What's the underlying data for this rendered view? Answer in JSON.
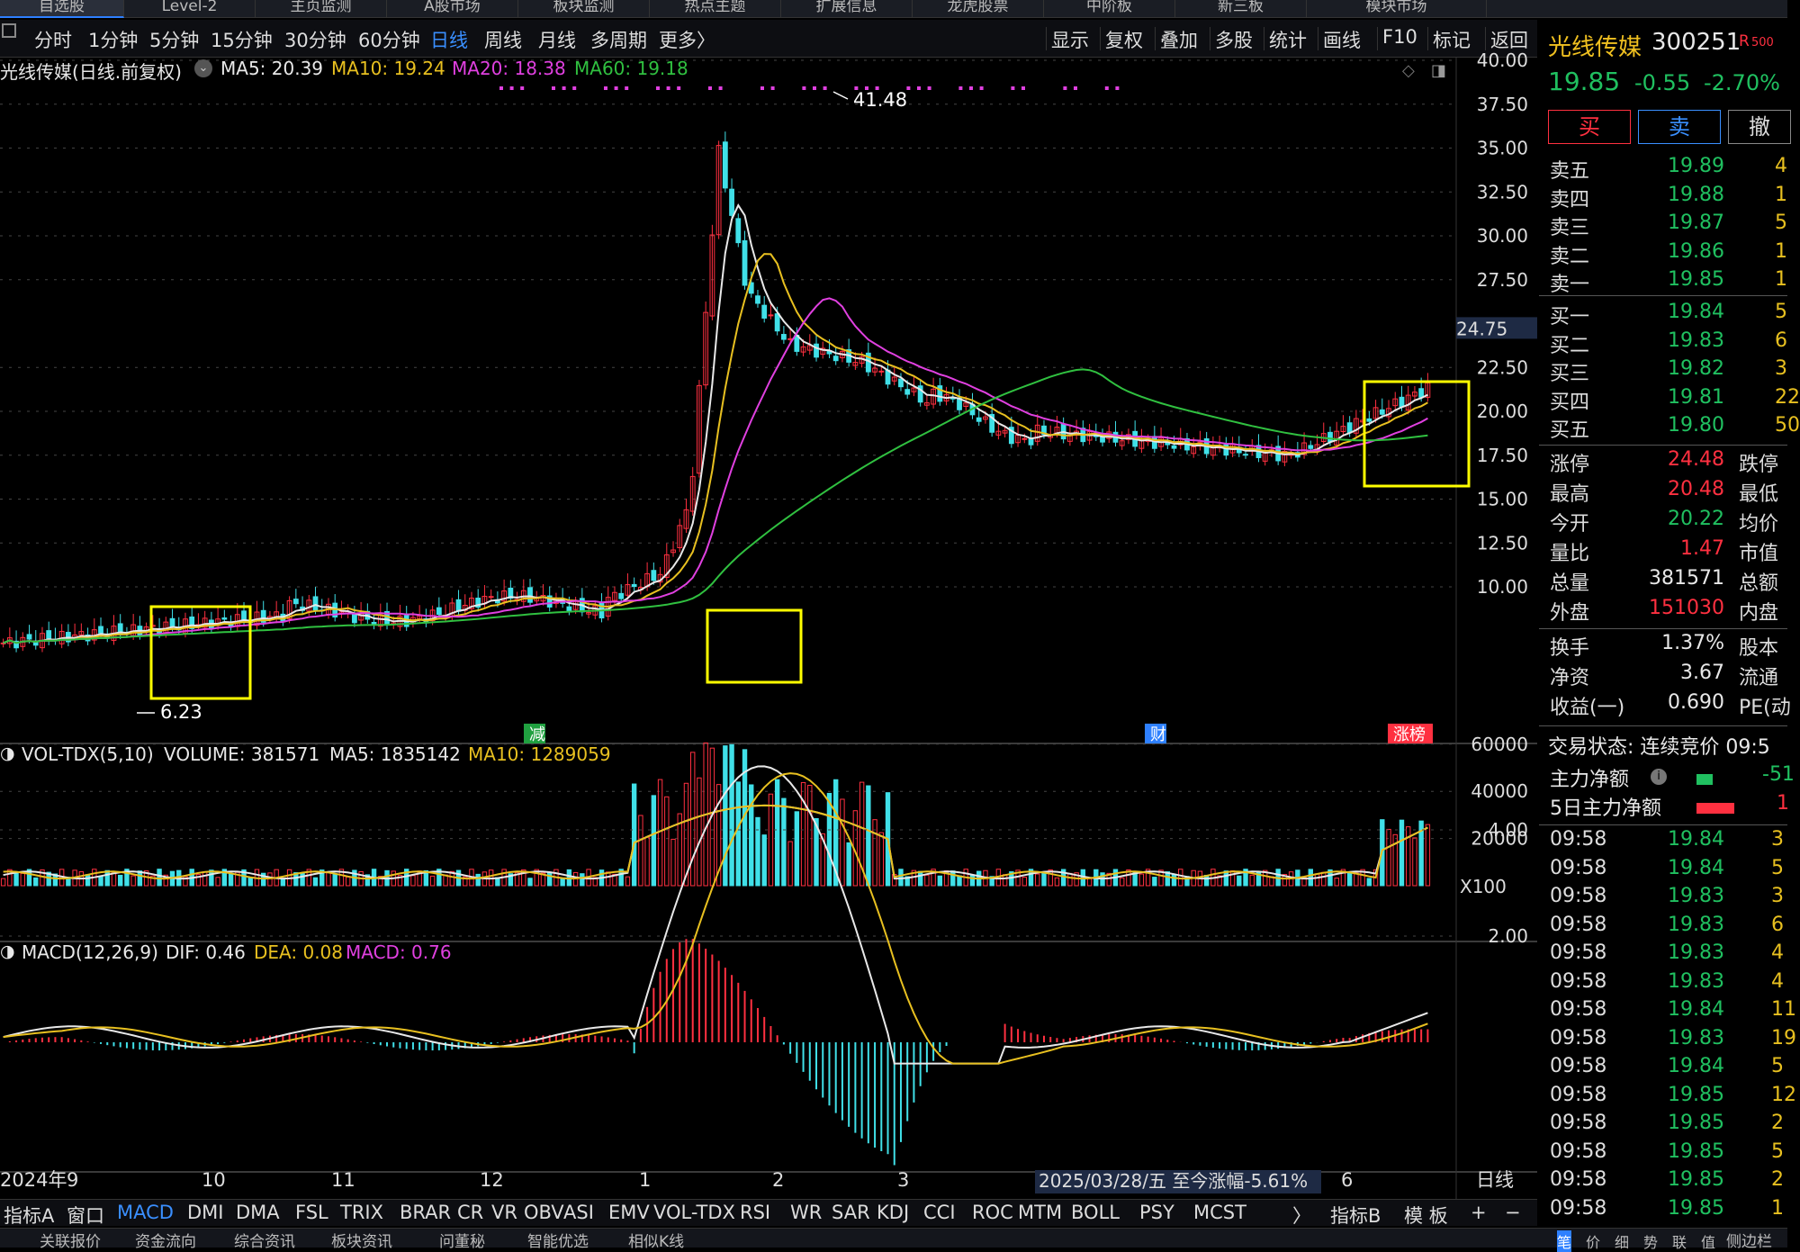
{
  "top_tabs": [
    "自选股",
    "Level-2",
    "主页监测",
    "A股市场",
    "板块监测",
    "热点主题",
    "扩展信息",
    "龙虎股票",
    "中阶板",
    "新三板",
    "模块市场"
  ],
  "periods": [
    "分时",
    "1分钟",
    "5分钟",
    "15分钟",
    "30分钟",
    "60分钟",
    "日线",
    "周线",
    "月线",
    "多周期",
    "更多〉"
  ],
  "active_period": "日线",
  "tools": [
    "显示",
    "复权",
    "叠加",
    "多股",
    "统计",
    "画线",
    "F10",
    "标记",
    "返回"
  ],
  "main_legend": {
    "title": "光线传媒(日线.前复权)",
    "ma5": "MA5: 20.39",
    "ma10": "MA10: 19.24",
    "ma20": "MA20: 18.38",
    "ma60": "MA60: 19.18"
  },
  "price_axis": [
    "40.00",
    "37.50",
    "35.00",
    "32.50",
    "30.00",
    "27.50",
    "22.50",
    "20.00",
    "17.50",
    "15.00",
    "12.50",
    "10.00"
  ],
  "price_marker": "24.75",
  "high_label": "41.48",
  "low_label": "6.23",
  "event_marks": {
    "reduce": "减",
    "finance": "财",
    "limit_up": "涨榜"
  },
  "vol_legend": {
    "title": "VOL-TDX(5,10)",
    "volume": "VOLUME: 381571",
    "ma5": "MA5: 1835142",
    "ma10": "MA10: 1289059"
  },
  "vol_axis": [
    "60000",
    "40000",
    "20000"
  ],
  "vol_unit": "X100",
  "macd_legend": {
    "title": "MACD(12,26,9)",
    "dif": "DIF: 0.46",
    "dea": "DEA: 0.08",
    "macd": "MACD: 0.76"
  },
  "macd_axis": [
    "4.00",
    "2.00"
  ],
  "date_axis": [
    "2024年",
    "9",
    "10",
    "11",
    "12",
    "1",
    "2",
    "3",
    "6"
  ],
  "date_tip": "2025/03/28/五  至今涨幅-5.61%",
  "date_label_right": "日线",
  "indicators": [
    "指标A",
    "窗口",
    "MACD",
    "DMI",
    "DMA",
    "FSL",
    "TRIX",
    "BRAR",
    "CR",
    "VR",
    "OBV",
    "ASI",
    "EMV",
    "VOL-TDX",
    "RSI",
    "WR",
    "SAR",
    "KDJ",
    "CCI",
    "ROC",
    "MTM",
    "BOLL",
    "PSY",
    "MCST",
    "〉",
    "指标B",
    "模 板",
    "+",
    "−"
  ],
  "active_indicator": "MACD",
  "bottom_tabs": [
    "关联报价",
    "资金流向",
    "综合资讯",
    "板块资讯",
    "问董秘",
    "智能优选",
    "相似K线",
    "侧边栏"
  ],
  "quote": {
    "name": "光线传媒",
    "code": "300251",
    "badge": "R",
    "badge_num": "500",
    "price": "19.85",
    "change": "-0.55",
    "pct": "-2.70%"
  },
  "trade_buttons": {
    "buy": "买",
    "sell": "卖",
    "cancel": "撤"
  },
  "asks": [
    {
      "label": "卖五",
      "price": "19.89",
      "vol": "4"
    },
    {
      "label": "卖四",
      "price": "19.88",
      "vol": "1"
    },
    {
      "label": "卖三",
      "price": "19.87",
      "vol": "5"
    },
    {
      "label": "卖二",
      "price": "19.86",
      "vol": "1"
    },
    {
      "label": "卖一",
      "price": "19.85",
      "vol": "1"
    }
  ],
  "bids": [
    {
      "label": "买一",
      "price": "19.84",
      "vol": "5"
    },
    {
      "label": "买二",
      "price": "19.83",
      "vol": "6"
    },
    {
      "label": "买三",
      "price": "19.82",
      "vol": "3"
    },
    {
      "label": "买四",
      "price": "19.81",
      "vol": "22"
    },
    {
      "label": "买五",
      "price": "19.80",
      "vol": "50"
    }
  ],
  "stats1": [
    {
      "k": "涨停",
      "v": "24.48",
      "c": "r",
      "x": "跌停"
    },
    {
      "k": "最高",
      "v": "20.48",
      "c": "r",
      "x": "最低"
    },
    {
      "k": "今开",
      "v": "20.22",
      "c": "gr",
      "x": "均价"
    },
    {
      "k": "量比",
      "v": "1.47",
      "c": "r",
      "x": "市值"
    },
    {
      "k": "总量",
      "v": "381571",
      "c": "w",
      "x": "总额"
    },
    {
      "k": "外盘",
      "v": "151030",
      "c": "r",
      "x": "内盘"
    }
  ],
  "stats2": [
    {
      "k": "换手",
      "v": "1.37%",
      "c": "w",
      "x": "股本"
    },
    {
      "k": "净资",
      "v": "3.67",
      "c": "w",
      "x": "流通"
    },
    {
      "k": "收益(一)",
      "v": "0.690",
      "c": "w",
      "x": "PE(动"
    }
  ],
  "trade_status": "交易状态: 连续竞价 09:5",
  "main_flow": {
    "label": "主力净额",
    "val": "-51"
  },
  "main_flow5": {
    "label": "5日主力净额",
    "val": "1"
  },
  "ticks": [
    {
      "t": "09:58",
      "p": "19.84",
      "c": "gr",
      "v": "3"
    },
    {
      "t": "09:58",
      "p": "19.84",
      "c": "gr",
      "v": "5"
    },
    {
      "t": "09:58",
      "p": "19.83",
      "c": "gr",
      "v": "3"
    },
    {
      "t": "09:58",
      "p": "19.83",
      "c": "gr",
      "v": "6"
    },
    {
      "t": "09:58",
      "p": "19.83",
      "c": "gr",
      "v": "4"
    },
    {
      "t": "09:58",
      "p": "19.83",
      "c": "gr",
      "v": "4"
    },
    {
      "t": "09:58",
      "p": "19.84",
      "c": "gr",
      "v": "11"
    },
    {
      "t": "09:58",
      "p": "19.83",
      "c": "gr",
      "v": "19"
    },
    {
      "t": "09:58",
      "p": "19.84",
      "c": "gr",
      "v": "5"
    },
    {
      "t": "09:58",
      "p": "19.85",
      "c": "gr",
      "v": "12"
    },
    {
      "t": "09:58",
      "p": "19.85",
      "c": "gr",
      "v": "2"
    },
    {
      "t": "09:58",
      "p": "19.85",
      "c": "gr",
      "v": "5"
    },
    {
      "t": "09:58",
      "p": "19.85",
      "c": "gr",
      "v": "2"
    },
    {
      "t": "09:58",
      "p": "19.85",
      "c": "gr",
      "v": "1"
    }
  ],
  "side_tabs": [
    "笔",
    "价",
    "细",
    "势",
    "联",
    "值"
  ],
  "colors": {
    "up": "#ff3040",
    "down": "#40e0e8",
    "ma5": "#e8e8e8",
    "ma10": "#e8c020",
    "ma20": "#e040e0",
    "ma60": "#30c040",
    "highlight_box": "#ffff00",
    "accent": "#3a8fff"
  }
}
